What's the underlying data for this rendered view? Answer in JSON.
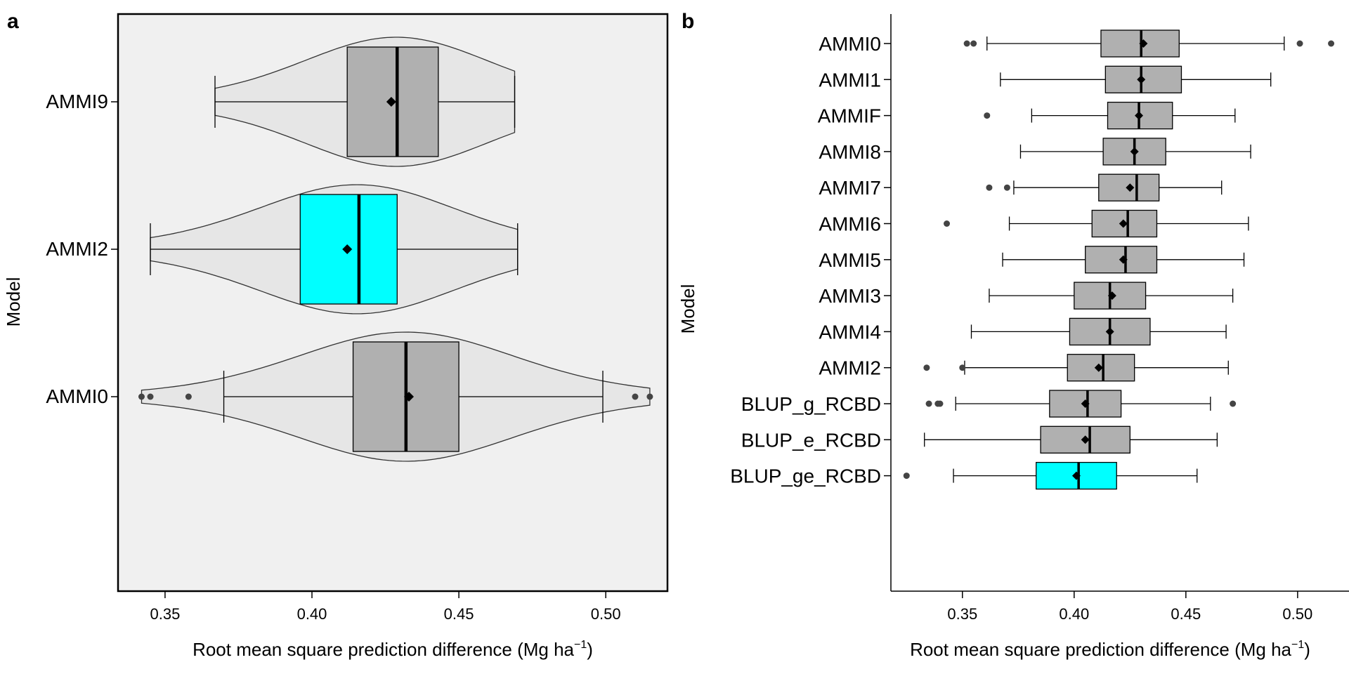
{
  "colors": {
    "box_fill": "#b0b0b0",
    "highlight_fill": "#00ffff",
    "violin_fill": "#e6e6e6",
    "panel_a_bg": "#f0f0f0",
    "outlier": "#444444"
  },
  "chart_data": [
    {
      "panel": "a",
      "type": "violin-boxplot",
      "orientation": "horizontal",
      "xlabel": "Root mean square prediction difference (Mg ha",
      "xlabel_sup": "−1",
      "xlabel_close": ")",
      "ylabel": "Model",
      "xlim": [
        0.334,
        0.521
      ],
      "xticks": [
        0.35,
        0.4,
        0.45,
        0.5
      ],
      "xtick_labels": [
        "0.35",
        "0.40",
        "0.45",
        "0.50"
      ],
      "categories": [
        "AMMI9",
        "AMMI2",
        "AMMI0"
      ],
      "series": [
        {
          "category": "AMMI9",
          "highlight": false,
          "whisker_low": 0.367,
          "q1": 0.412,
          "median": 0.429,
          "q3": 0.443,
          "whisker_high": 0.469,
          "mean": 0.427,
          "outliers": []
        },
        {
          "category": "AMMI2",
          "highlight": true,
          "whisker_low": 0.345,
          "q1": 0.396,
          "median": 0.416,
          "q3": 0.429,
          "whisker_high": 0.47,
          "mean": 0.412,
          "outliers": []
        },
        {
          "category": "AMMI0",
          "highlight": false,
          "whisker_low": 0.37,
          "q1": 0.414,
          "median": 0.432,
          "q3": 0.45,
          "whisker_high": 0.499,
          "mean": 0.433,
          "outliers": [
            0.342,
            0.345,
            0.358,
            0.51,
            0.515
          ]
        }
      ],
      "grid": false
    },
    {
      "panel": "b",
      "type": "boxplot",
      "orientation": "horizontal",
      "xlabel": "Root mean square prediction difference (Mg ha",
      "xlabel_sup": "−1",
      "xlabel_close": ")",
      "ylabel": "Model",
      "xlim": [
        0.318,
        0.523
      ],
      "xticks": [
        0.35,
        0.4,
        0.45,
        0.5
      ],
      "xtick_labels": [
        "0.35",
        "0.40",
        "0.45",
        "0.50"
      ],
      "categories": [
        "AMMI0",
        "AMMI1",
        "AMMIF",
        "AMMI8",
        "AMMI7",
        "AMMI6",
        "AMMI5",
        "AMMI3",
        "AMMI4",
        "AMMI2",
        "BLUP_g_RCBD",
        "BLUP_e_RCBD",
        "BLUP_ge_RCBD"
      ],
      "series": [
        {
          "category": "AMMI0",
          "highlight": false,
          "whisker_low": 0.361,
          "q1": 0.412,
          "median": 0.43,
          "q3": 0.447,
          "whisker_high": 0.494,
          "mean": 0.431,
          "outliers": [
            0.352,
            0.355,
            0.501,
            0.515
          ]
        },
        {
          "category": "AMMI1",
          "highlight": false,
          "whisker_low": 0.367,
          "q1": 0.414,
          "median": 0.43,
          "q3": 0.448,
          "whisker_high": 0.488,
          "mean": 0.43,
          "outliers": []
        },
        {
          "category": "AMMIF",
          "highlight": false,
          "whisker_low": 0.381,
          "q1": 0.415,
          "median": 0.429,
          "q3": 0.444,
          "whisker_high": 0.472,
          "mean": 0.429,
          "outliers": [
            0.361
          ]
        },
        {
          "category": "AMMI8",
          "highlight": false,
          "whisker_low": 0.376,
          "q1": 0.413,
          "median": 0.427,
          "q3": 0.441,
          "whisker_high": 0.479,
          "mean": 0.427,
          "outliers": []
        },
        {
          "category": "AMMI7",
          "highlight": false,
          "whisker_low": 0.373,
          "q1": 0.411,
          "median": 0.428,
          "q3": 0.438,
          "whisker_high": 0.466,
          "mean": 0.425,
          "outliers": [
            0.362,
            0.37
          ]
        },
        {
          "category": "AMMI6",
          "highlight": false,
          "whisker_low": 0.371,
          "q1": 0.408,
          "median": 0.424,
          "q3": 0.437,
          "whisker_high": 0.478,
          "mean": 0.422,
          "outliers": [
            0.343
          ]
        },
        {
          "category": "AMMI5",
          "highlight": false,
          "whisker_low": 0.368,
          "q1": 0.405,
          "median": 0.423,
          "q3": 0.437,
          "whisker_high": 0.476,
          "mean": 0.422,
          "outliers": []
        },
        {
          "category": "AMMI3",
          "highlight": false,
          "whisker_low": 0.362,
          "q1": 0.4,
          "median": 0.416,
          "q3": 0.432,
          "whisker_high": 0.471,
          "mean": 0.417,
          "outliers": []
        },
        {
          "category": "AMMI4",
          "highlight": false,
          "whisker_low": 0.354,
          "q1": 0.398,
          "median": 0.416,
          "q3": 0.434,
          "whisker_high": 0.468,
          "mean": 0.416,
          "outliers": []
        },
        {
          "category": "AMMI2",
          "highlight": false,
          "whisker_low": 0.351,
          "q1": 0.397,
          "median": 0.413,
          "q3": 0.427,
          "whisker_high": 0.469,
          "mean": 0.411,
          "outliers": [
            0.334,
            0.35
          ]
        },
        {
          "category": "BLUP_g_RCBD",
          "highlight": false,
          "whisker_low": 0.347,
          "q1": 0.389,
          "median": 0.406,
          "q3": 0.421,
          "whisker_high": 0.461,
          "mean": 0.405,
          "outliers": [
            0.335,
            0.339,
            0.34,
            0.471
          ]
        },
        {
          "category": "BLUP_e_RCBD",
          "highlight": false,
          "whisker_low": 0.333,
          "q1": 0.385,
          "median": 0.407,
          "q3": 0.425,
          "whisker_high": 0.464,
          "mean": 0.405,
          "outliers": []
        },
        {
          "category": "BLUP_ge_RCBD",
          "highlight": true,
          "whisker_low": 0.346,
          "q1": 0.383,
          "median": 0.402,
          "q3": 0.419,
          "whisker_high": 0.455,
          "mean": 0.401,
          "outliers": [
            0.325
          ]
        }
      ],
      "grid": false
    }
  ]
}
